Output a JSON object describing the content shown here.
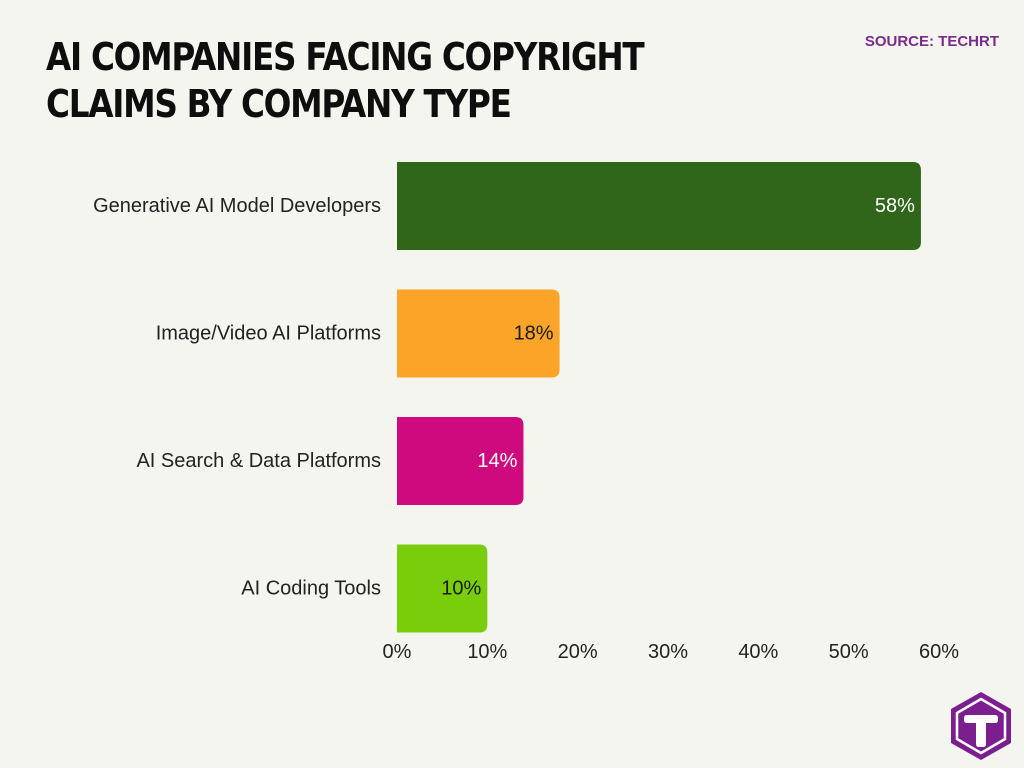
{
  "title": "AI COMPANIES FACING COPYRIGHT CLAIMS BY COMPANY TYPE",
  "source": "SOURCE: TECHRT",
  "logo_icon": "techrt-logo-icon",
  "colors": {
    "background": "#f5f5f0",
    "title": "#0e0e0e",
    "source": "#7a2a8c",
    "logo": "#7b1f8f"
  },
  "chart_data": {
    "type": "bar",
    "orientation": "horizontal",
    "categories": [
      "Generative AI Model Developers",
      "Image/Video AI Platforms",
      "AI Search & Data Platforms",
      "AI Coding Tools"
    ],
    "values": [
      58,
      18,
      14,
      10
    ],
    "value_labels": [
      "58%",
      "18%",
      "14%",
      "10%"
    ],
    "bar_colors": [
      "#2f6619",
      "#fba428",
      "#cf0a7e",
      "#79cd0a"
    ],
    "value_label_colors": [
      "#ffffff",
      "#1a1a1a",
      "#ffffff",
      "#1a1a1a"
    ],
    "xlim": [
      0,
      60
    ],
    "xticks": [
      0,
      10,
      20,
      30,
      40,
      50,
      60
    ],
    "xtick_labels": [
      "0%",
      "10%",
      "20%",
      "30%",
      "40%",
      "50%",
      "60%"
    ],
    "grid": false,
    "legend": false
  }
}
